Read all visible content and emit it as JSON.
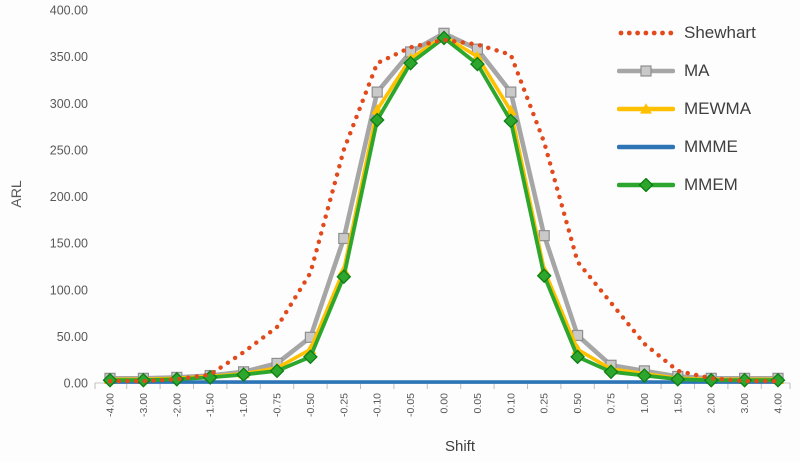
{
  "chart_data": {
    "type": "line",
    "title": "",
    "xlabel": "Shift",
    "ylabel": "ARL",
    "ylim": [
      0,
      400
    ],
    "ytick_step": 50,
    "ytick_labels": [
      "400.00",
      "350.00",
      "300.00",
      "250.00",
      "200.00",
      "150.00",
      "100.00",
      "50.00",
      "0.00"
    ],
    "grid": false,
    "legend_position": "right",
    "categories": [
      "-4.00",
      "-3.00",
      "-2.00",
      "-1.50",
      "-1.00",
      "-0.75",
      "-0.50",
      "-0.25",
      "-0.10",
      "-0.05",
      "0.00",
      "0.05",
      "0.10",
      "0.25",
      "0.50",
      "0.75",
      "1.00",
      "1.50",
      "2.00",
      "3.00",
      "4.00"
    ],
    "series": [
      {
        "name": "Shewhart",
        "color": "#E2491B",
        "style": "dotted",
        "marker": "none",
        "line_width": 4.4,
        "values": [
          2,
          2,
          4,
          9,
          33,
          60,
          118,
          250,
          343,
          360,
          368,
          363,
          352,
          258,
          130,
          86,
          42,
          13,
          5,
          2,
          2
        ]
      },
      {
        "name": "MA",
        "color": "#A6A6A6",
        "style": "solid",
        "marker": "square",
        "marker_fill": "#C9C9C9",
        "marker_stroke": "#8F8F8F",
        "line_width": 4.6,
        "values": [
          5,
          5,
          6,
          8,
          12,
          21,
          49,
          155,
          312,
          355,
          375,
          358,
          312,
          158,
          51,
          19,
          13,
          7,
          5,
          5,
          5
        ]
      },
      {
        "name": "MEWMA",
        "color": "#FFC000",
        "style": "solid",
        "marker": "triangle",
        "marker_fill": "#FFC000",
        "marker_stroke": "#E0A400",
        "line_width": 3.6,
        "values": [
          4,
          4,
          5,
          7,
          10,
          16,
          36,
          121,
          293,
          348,
          372,
          350,
          292,
          121,
          36,
          15,
          10,
          5,
          4,
          4,
          4
        ]
      },
      {
        "name": "MMME",
        "color": "#2E75B6",
        "style": "solid",
        "marker": "none",
        "line_width": 3.6,
        "values": [
          1,
          1,
          1,
          1,
          1,
          1,
          1,
          1,
          1,
          1,
          1,
          1,
          1,
          1,
          1,
          1,
          1,
          1,
          1,
          1,
          1
        ]
      },
      {
        "name": "MMEM",
        "color": "#2CA62C",
        "style": "solid",
        "marker": "diamond",
        "marker_fill": "#2CA62C",
        "marker_stroke": "#0E7E14",
        "line_width": 3.8,
        "values": [
          3,
          3,
          4,
          6,
          9,
          13,
          28,
          114,
          282,
          343,
          370,
          342,
          281,
          115,
          28,
          12,
          8,
          4,
          3,
          3,
          3
        ]
      }
    ]
  }
}
